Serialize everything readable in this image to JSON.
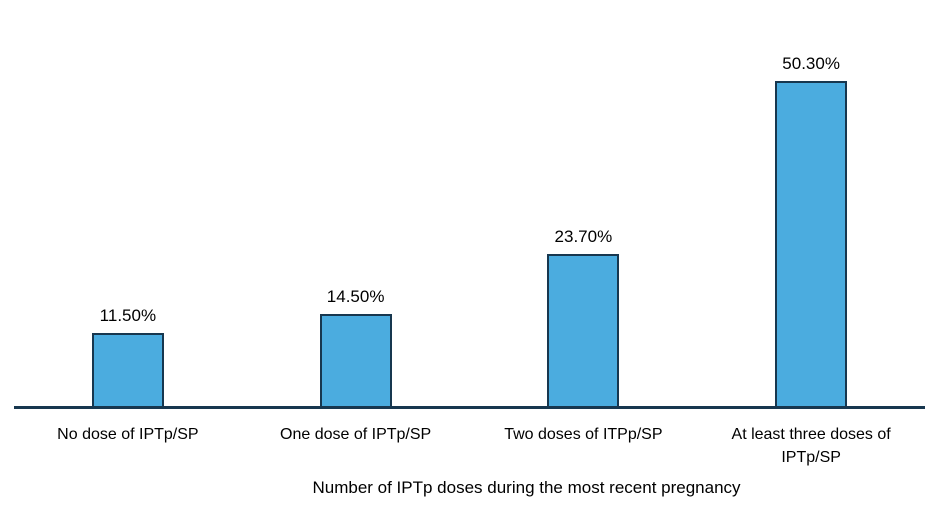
{
  "page": {
    "background": "#ffffff"
  },
  "chart_data": {
    "type": "bar",
    "title": "",
    "xlabel": "Number of IPTp doses during the most recent pregnancy",
    "ylabel": "",
    "categories": [
      "No dose of IPTp/SP",
      "One dose of IPTp/SP",
      "Two doses of ITPp/SP",
      "At least three doses of IPTp/SP"
    ],
    "values": [
      11.5,
      14.5,
      23.7,
      50.3
    ],
    "value_labels": [
      "11.50%",
      "14.50%",
      "23.70%",
      "50.30%"
    ],
    "ylim": [
      0,
      62.5
    ],
    "grid": false,
    "legend_position": "none",
    "colors": {
      "bar_fill": "#4BACDF",
      "bar_border": "#17374F",
      "axis_line": "#17374F",
      "label_text": "#000000"
    }
  }
}
